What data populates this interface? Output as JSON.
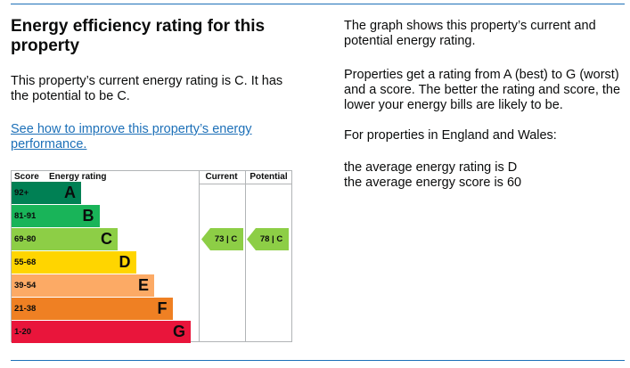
{
  "heading": "Energy efficiency rating for this property",
  "summary": "This property’s current energy rating is C. It has the potential to be C.",
  "improve_link": "See how to improve this property’s energy performance.",
  "right": {
    "p1": "The graph shows this property’s current and potential energy rating.",
    "p2": "Properties get a rating from A (best) to G (worst) and a score. The better the rating and score, the lower your energy bills are likely to be.",
    "p3": "For properties in England and Wales:",
    "p4a": "the average energy rating is D",
    "p4b": "the average energy score is 60"
  },
  "chart": {
    "headers": {
      "score": "Score",
      "rating": "Energy rating",
      "current": "Current",
      "potential": "Potential"
    },
    "bands": [
      {
        "score": "92+",
        "letter": "A",
        "color": "#008054"
      },
      {
        "score": "81-91",
        "letter": "B",
        "color": "#19b459"
      },
      {
        "score": "69-80",
        "letter": "C",
        "color": "#8dce46"
      },
      {
        "score": "55-68",
        "letter": "D",
        "color": "#ffd500"
      },
      {
        "score": "39-54",
        "letter": "E",
        "color": "#fcaa65"
      },
      {
        "score": "21-38",
        "letter": "F",
        "color": "#ef8023"
      },
      {
        "score": "1-20",
        "letter": "G",
        "color": "#e9153b"
      }
    ],
    "current": {
      "label": "73 | C",
      "band": "C",
      "color": "#8dce46"
    },
    "potential": {
      "label": "78 | C",
      "band": "C",
      "color": "#8dce46"
    }
  }
}
